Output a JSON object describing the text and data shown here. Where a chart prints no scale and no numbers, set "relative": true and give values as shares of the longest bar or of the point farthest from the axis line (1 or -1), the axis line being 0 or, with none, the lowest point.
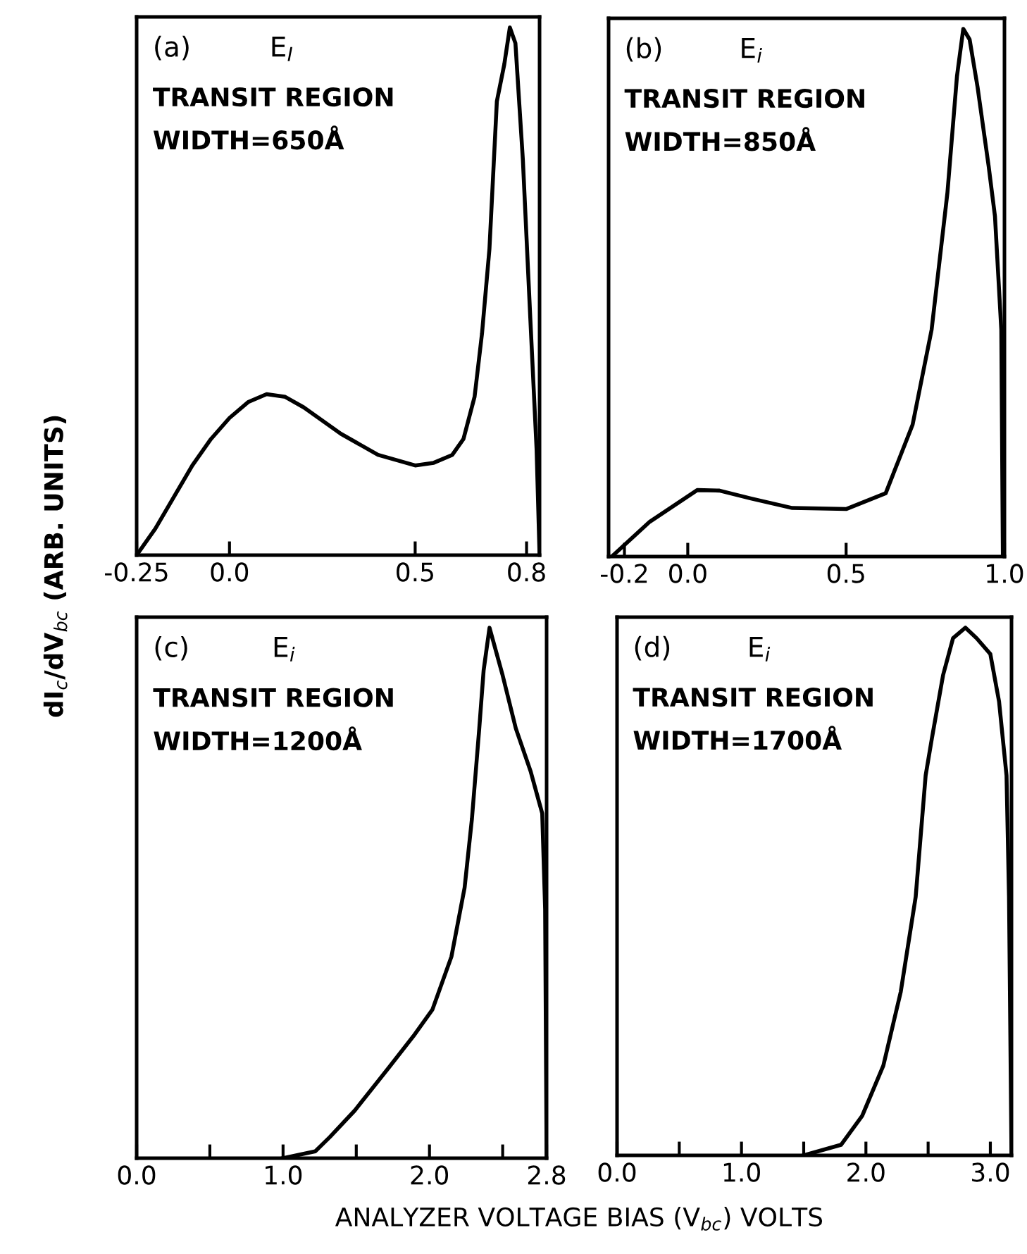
{
  "chart_data": [
    {
      "type": "line",
      "relative": true,
      "tick_labels": "x",
      "grid": false,
      "legend": false,
      "marker": "none",
      "line_style": "solid",
      "ylabel": "dI$_{c}$/dV$_{bc}$ (ARB. UNITS)",
      "xlim": [
        -0.25,
        0.835
      ],
      "xticks": [
        {
          "value": -0.25,
          "label": "-0.25"
        },
        {
          "value": 0.0,
          "label": "0.0"
        },
        0.5,
        0.8
      ],
      "annotations": [
        "(a)",
        "E$_{I}$",
        "TRANSIT REGION",
        "WIDTH=650Å"
      ],
      "series": [
        {
          "color": "#000000",
          "x": [
            -0.25,
            -0.2,
            -0.15,
            -0.1,
            -0.05,
            0.0,
            0.05,
            0.1,
            0.15,
            0.2,
            0.3,
            0.4,
            0.5,
            0.55,
            0.6,
            0.63,
            0.66,
            0.68,
            0.7,
            0.72,
            0.74,
            0.755,
            0.77,
            0.79,
            0.81,
            0.827,
            0.835
          ],
          "values": [
            0,
            0.05,
            0.11,
            0.17,
            0.22,
            0.26,
            0.29,
            0.305,
            0.3,
            0.28,
            0.23,
            0.19,
            0.17,
            0.175,
            0.19,
            0.22,
            0.3,
            0.42,
            0.58,
            0.86,
            0.93,
            1.0,
            0.97,
            0.75,
            0.45,
            0.2,
            0
          ]
        }
      ]
    },
    {
      "type": "line",
      "relative": true,
      "tick_labels": "x",
      "grid": false,
      "legend": false,
      "marker": "none",
      "line_style": "solid",
      "xlim": [
        -0.25,
        1.0
      ],
      "xticks": [
        {
          "value": -0.2,
          "label": "-0.2"
        },
        {
          "value": 0.0,
          "label": "0.0"
        },
        0.5,
        {
          "value": 1.0,
          "label": "1.0"
        }
      ],
      "annotations": [
        "(b)",
        "E$_{i}$",
        "TRANSIT REGION",
        "WIDTH=850Å"
      ],
      "series": [
        {
          "color": "#000000",
          "x": [
            -0.24,
            -0.12,
            0.03,
            0.1,
            0.2,
            0.33,
            0.5,
            0.625,
            0.71,
            0.77,
            0.82,
            0.85,
            0.87,
            0.89,
            0.915,
            0.95,
            0.97,
            0.99,
            0.995
          ],
          "values": [
            0,
            0.066,
            0.126,
            0.125,
            0.11,
            0.092,
            0.09,
            0.12,
            0.25,
            0.43,
            0.69,
            0.91,
            1.0,
            0.98,
            0.89,
            0.74,
            0.645,
            0.43,
            0
          ]
        }
      ]
    },
    {
      "type": "line",
      "relative": true,
      "tick_labels": "x",
      "grid": false,
      "legend": false,
      "marker": "none",
      "line_style": "solid",
      "xlabel": "ANALYZER VOLTAGE BIAS (V$_{bc}$) VOLTS",
      "xlim": [
        0,
        2.8
      ],
      "xticks": [
        {
          "value": 0.0,
          "label": "0.0"
        },
        {
          "value": 0.5,
          "label": null
        },
        {
          "value": 1.0,
          "label": "1.0"
        },
        {
          "value": 1.5,
          "label": null
        },
        {
          "value": 2.0,
          "label": "2.0"
        },
        {
          "value": 2.5,
          "label": null
        },
        2.8
      ],
      "annotations": [
        "(c)",
        "E$_{i}$",
        "TRANSIT REGION",
        "WIDTH=1200Å"
      ],
      "series": [
        {
          "color": "#000000",
          "x": [
            1.0,
            1.22,
            1.32,
            1.49,
            1.72,
            1.89,
            2.02,
            2.15,
            2.24,
            2.29,
            2.34,
            2.37,
            2.41,
            2.5,
            2.59,
            2.69,
            2.77,
            2.79,
            2.8
          ],
          "values": [
            0,
            0.013,
            0.04,
            0.09,
            0.17,
            0.23,
            0.28,
            0.38,
            0.51,
            0.64,
            0.81,
            0.92,
            1.0,
            0.91,
            0.81,
            0.73,
            0.65,
            0.47,
            0
          ]
        }
      ]
    },
    {
      "type": "line",
      "relative": true,
      "tick_labels": "x",
      "grid": false,
      "legend": false,
      "marker": "none",
      "line_style": "solid",
      "xlim": [
        0,
        3.17
      ],
      "xticks": [
        {
          "value": 0.0,
          "label": "0.0"
        },
        {
          "value": 0.5,
          "label": null
        },
        {
          "value": 1.0,
          "label": "1.0"
        },
        {
          "value": 1.5,
          "label": null
        },
        {
          "value": 2.0,
          "label": "2.0"
        },
        {
          "value": 2.5,
          "label": null
        },
        {
          "value": 3.0,
          "label": "3.0"
        }
      ],
      "annotations": [
        "(d)",
        "E$_{i}$",
        "TRANSIT REGION",
        "WIDTH=1700Å"
      ],
      "series": [
        {
          "color": "#000000",
          "x": [
            1.5,
            1.8,
            1.97,
            2.14,
            2.28,
            2.4,
            2.48,
            2.53,
            2.62,
            2.7,
            2.8,
            2.89,
            3.0,
            3.07,
            3.13,
            3.15,
            3.17
          ],
          "values": [
            0,
            0.02,
            0.075,
            0.17,
            0.31,
            0.49,
            0.72,
            0.79,
            0.91,
            0.98,
            1.0,
            0.98,
            0.95,
            0.86,
            0.72,
            0.49,
            0
          ]
        }
      ]
    }
  ]
}
